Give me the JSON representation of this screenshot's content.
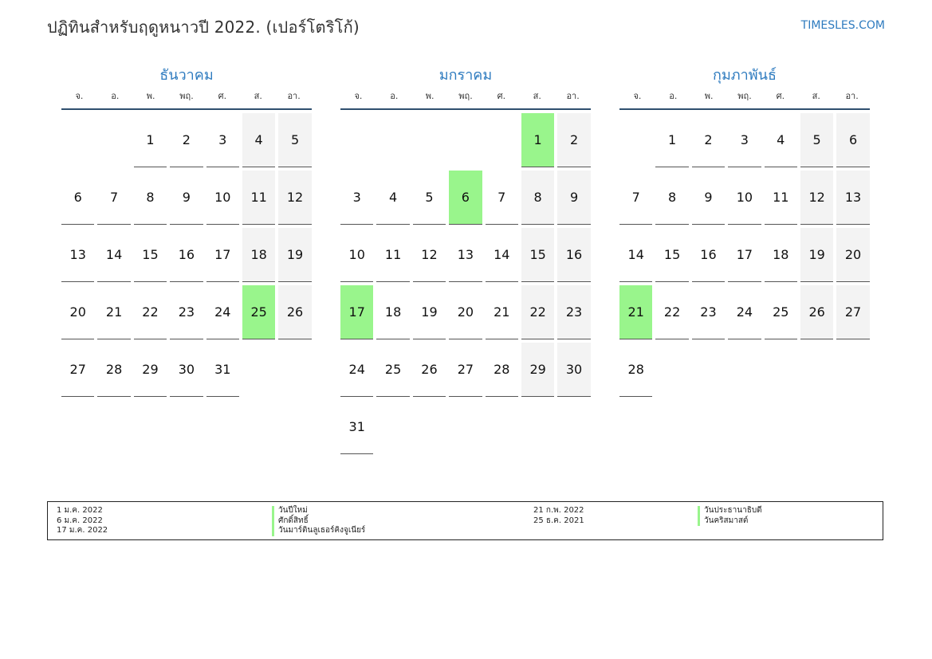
{
  "header": {
    "title": "ปฏิทินสำหรับฤดูหนาวปี 2022. (เปอร์โตริโก้)",
    "site": "TIMESLES.COM"
  },
  "weekdays": [
    "จ.",
    "อ.",
    "พ.",
    "พฤ.",
    "ศ.",
    "ส.",
    "อา."
  ],
  "months": [
    {
      "name": "ธันวาคม",
      "offset": 2,
      "days": 31,
      "holidays": [
        25
      ]
    },
    {
      "name": "มกราคม",
      "offset": 5,
      "days": 31,
      "holidays": [
        1,
        6,
        17
      ]
    },
    {
      "name": "กุมภาพันธ์",
      "offset": 1,
      "days": 28,
      "holidays": [
        21
      ]
    }
  ],
  "legend": {
    "left_dates": [
      "1 ม.ค. 2022",
      "6 ม.ค. 2022",
      "17 ม.ค. 2022"
    ],
    "left_names": [
      "วันปีใหม่",
      "ศักดิ์สิทธิ์",
      "วันมาร์ตินลูเธอร์คิงจูเนียร์"
    ],
    "right_dates": [
      "21 ก.พ. 2022",
      "25 ธ.ค. 2021"
    ],
    "right_names": [
      "วันประธานาธิบดี",
      "วันคริสมาสต์"
    ]
  }
}
